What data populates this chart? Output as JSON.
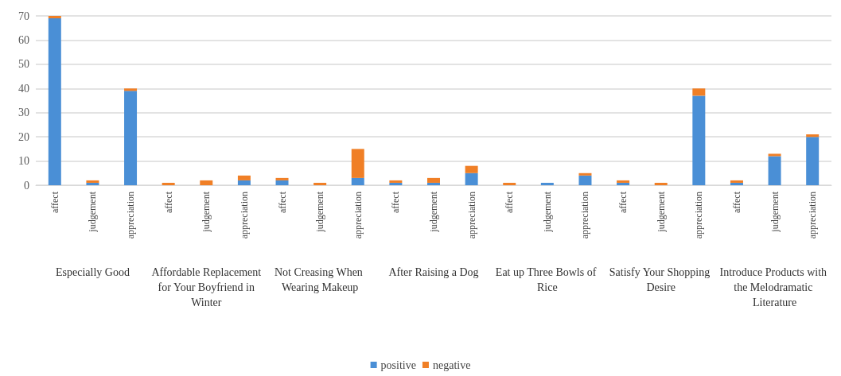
{
  "chart_data": {
    "type": "bar",
    "stacked": true,
    "categories": [
      "affect",
      "judgement",
      "appreciation",
      "affect",
      "judgement",
      "appreciation",
      "affect",
      "judgement",
      "appreciation",
      "affect",
      "judgement",
      "appreciation",
      "affect",
      "judgement",
      "appreciation",
      "affect",
      "judgement",
      "appreciation",
      "affect",
      "judgement",
      "appreciation"
    ],
    "annotations": [
      "Especially Good",
      "Affordable Replacement for Your Boyfriend in Winter",
      "Not Creasing When Wearing Makeup",
      "After Raising a Dog",
      "Eat up Three Bowls of Rice",
      "Satisfy Your Shopping Desire",
      "Introduce Products with the Melodramatic Literature"
    ],
    "series": [
      {
        "name": "positive",
        "color": "#4a8fd6",
        "values": [
          69,
          1,
          39,
          0,
          0,
          2,
          2,
          0,
          3,
          1,
          1,
          5,
          0,
          1,
          4,
          1,
          0,
          37,
          1,
          12,
          20
        ]
      },
      {
        "name": "negative",
        "color": "#f07f26",
        "values": [
          1,
          1,
          1,
          1,
          2,
          2,
          1,
          1,
          12,
          1,
          2,
          3,
          1,
          0,
          1,
          1,
          1,
          3,
          1,
          1,
          1
        ]
      }
    ],
    "ylim": [
      0,
      70
    ],
    "yticks": [
      0,
      10,
      20,
      30,
      40,
      50,
      60,
      70
    ],
    "grid": "y",
    "legend": "bottom"
  }
}
